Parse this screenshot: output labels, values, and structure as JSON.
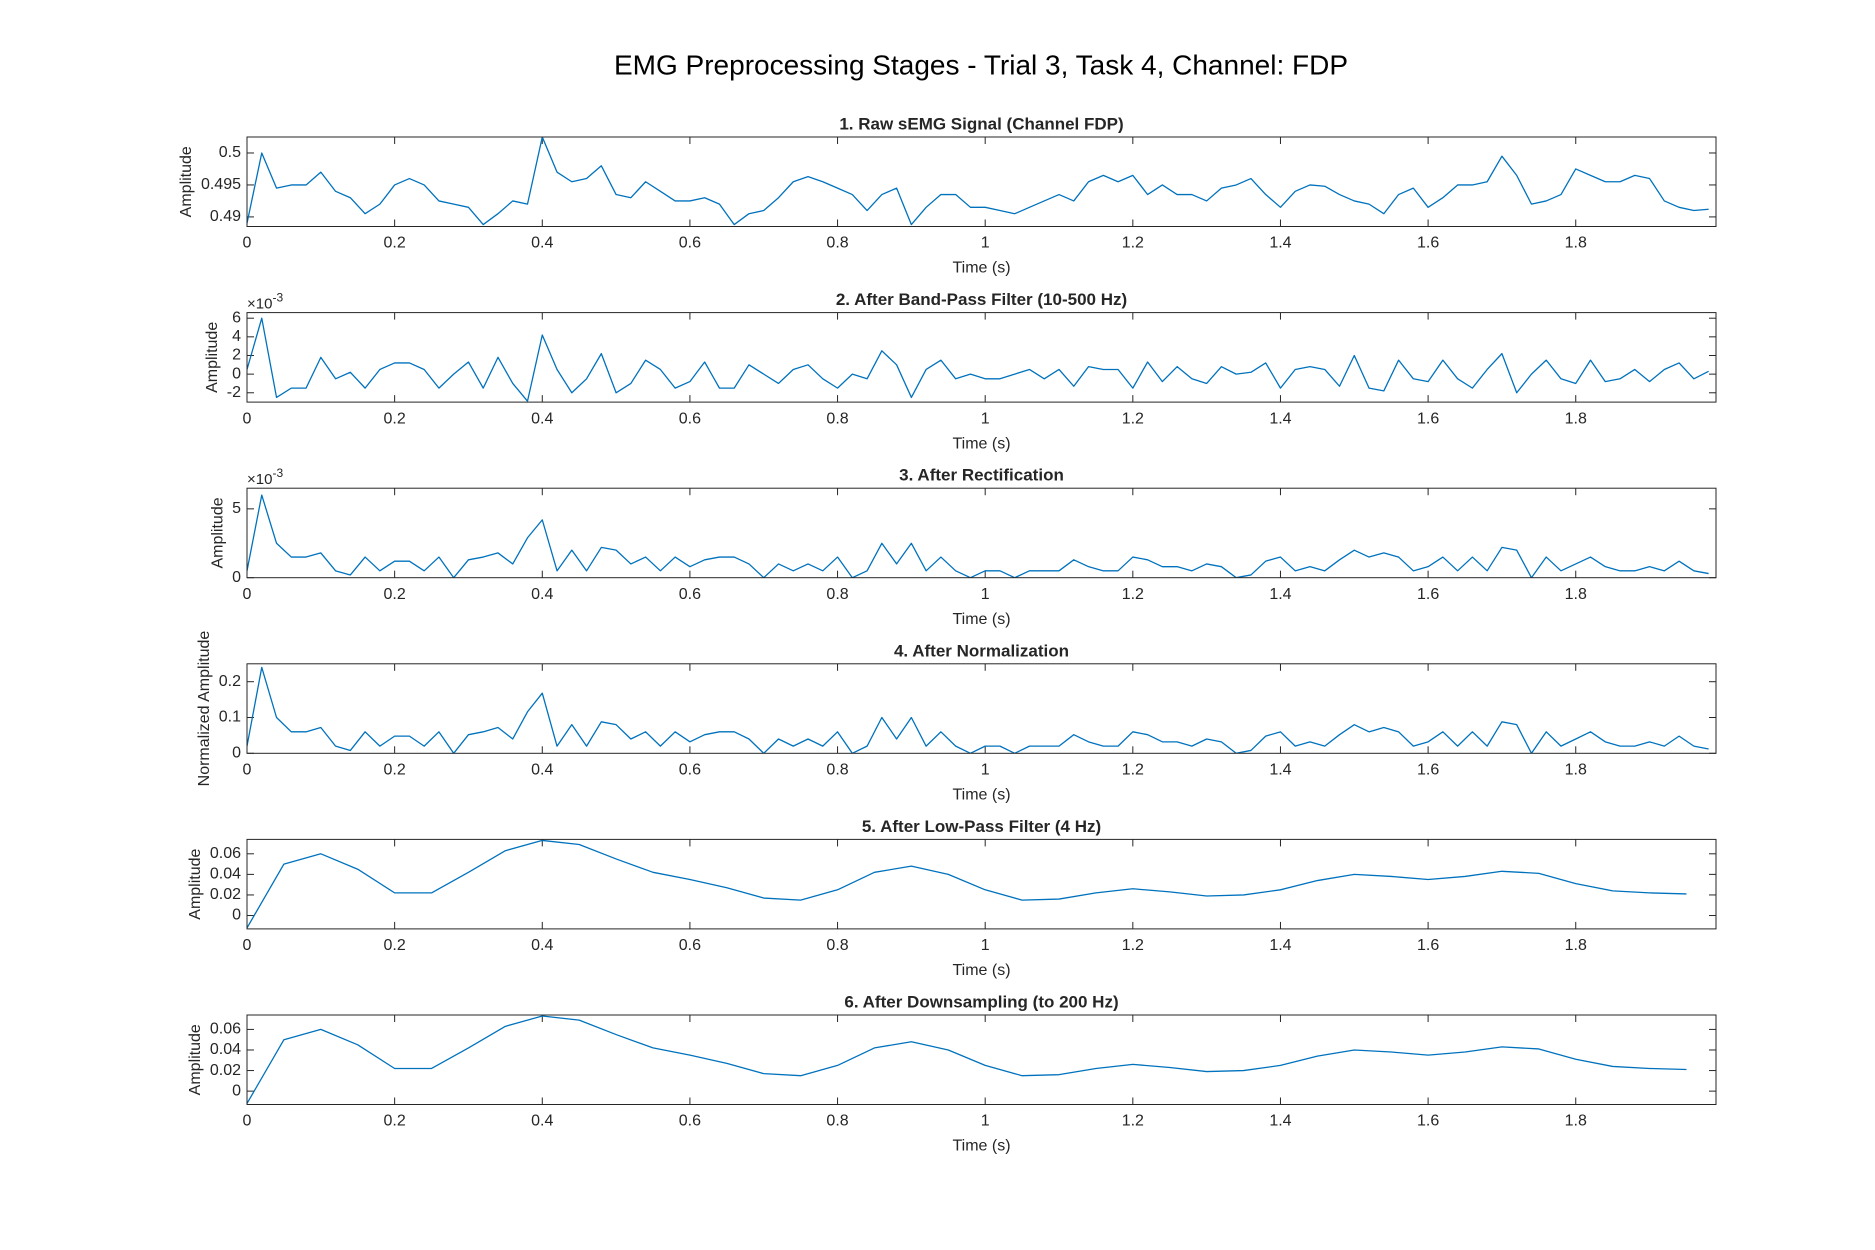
{
  "title": "EMG Preprocessing Stages - Trial 3, Task 4, Channel: FDP",
  "chart_data": [
    {
      "type": "line",
      "title": "1. Raw sEMG Signal (Channel FDP)",
      "xlabel": "Time (s)",
      "ylabel": "Amplitude",
      "xlim": [
        0,
        1.99
      ],
      "xticks": [
        0,
        0.2,
        0.4,
        0.6,
        0.8,
        1,
        1.2,
        1.4,
        1.6,
        1.8
      ],
      "ylim": [
        0.4885,
        0.5025
      ],
      "yticks": [
        0.49,
        0.495,
        0.5
      ],
      "x": [
        0,
        0.02,
        0.04,
        0.06,
        0.08,
        0.1,
        0.12,
        0.14,
        0.16,
        0.18,
        0.2,
        0.22,
        0.24,
        0.26,
        0.28,
        0.3,
        0.32,
        0.34,
        0.36,
        0.38,
        0.4,
        0.42,
        0.44,
        0.46,
        0.48,
        0.5,
        0.52,
        0.54,
        0.56,
        0.58,
        0.6,
        0.62,
        0.64,
        0.66,
        0.68,
        0.7,
        0.72,
        0.74,
        0.76,
        0.78,
        0.8,
        0.82,
        0.84,
        0.86,
        0.88,
        0.9,
        0.92,
        0.94,
        0.96,
        0.98,
        1,
        1.02,
        1.04,
        1.06,
        1.08,
        1.1,
        1.12,
        1.14,
        1.16,
        1.18,
        1.2,
        1.22,
        1.24,
        1.26,
        1.28,
        1.3,
        1.32,
        1.34,
        1.36,
        1.38,
        1.4,
        1.42,
        1.44,
        1.46,
        1.48,
        1.5,
        1.52,
        1.54,
        1.56,
        1.58,
        1.6,
        1.62,
        1.64,
        1.66,
        1.68,
        1.7,
        1.72,
        1.74,
        1.76,
        1.78,
        1.8,
        1.82,
        1.84,
        1.86,
        1.88,
        1.9,
        1.92,
        1.94,
        1.96,
        1.98
      ],
      "series": [
        {
          "color": "#0072bd",
          "values": [
            0.489,
            0.5,
            0.4945,
            0.495,
            0.495,
            0.497,
            0.494,
            0.493,
            0.4905,
            0.492,
            0.495,
            0.496,
            0.495,
            0.4925,
            0.492,
            0.4915,
            0.4888,
            0.4905,
            0.4925,
            0.492,
            0.5025,
            0.497,
            0.4955,
            0.496,
            0.498,
            0.4935,
            0.493,
            0.4955,
            0.494,
            0.4925,
            0.4925,
            0.493,
            0.492,
            0.4888,
            0.4905,
            0.491,
            0.493,
            0.4955,
            0.4963,
            0.4955,
            0.4945,
            0.4935,
            0.491,
            0.4935,
            0.4945,
            0.4888,
            0.4915,
            0.4935,
            0.4935,
            0.4915,
            0.4915,
            0.491,
            0.4905,
            0.4915,
            0.4925,
            0.4935,
            0.4925,
            0.4955,
            0.4965,
            0.4955,
            0.4965,
            0.4935,
            0.495,
            0.4935,
            0.4935,
            0.4925,
            0.4945,
            0.495,
            0.496,
            0.4935,
            0.4915,
            0.494,
            0.495,
            0.4948,
            0.4935,
            0.4925,
            0.492,
            0.4905,
            0.4935,
            0.4945,
            0.4915,
            0.493,
            0.495,
            0.495,
            0.4955,
            0.4995,
            0.4965,
            0.492,
            0.4925,
            0.4935,
            0.4975,
            0.4965,
            0.4955,
            0.4955,
            0.4965,
            0.496,
            0.4925,
            0.4915,
            0.491,
            0.4912
          ]
        }
      ]
    },
    {
      "type": "line",
      "title": "2. After Band-Pass Filter (10-500 Hz)",
      "xlabel": "Time (s)",
      "ylabel": "Amplitude",
      "y_exponent": {
        "base": "×10",
        "power": "-3"
      },
      "xlim": [
        0,
        1.99
      ],
      "xticks": [
        0,
        0.2,
        0.4,
        0.6,
        0.8,
        1,
        1.2,
        1.4,
        1.6,
        1.8
      ],
      "ylim": [
        -3,
        6.6
      ],
      "yticks": [
        -2,
        0,
        2,
        4,
        6
      ],
      "x": [
        0,
        0.02,
        0.04,
        0.06,
        0.08,
        0.1,
        0.12,
        0.14,
        0.16,
        0.18,
        0.2,
        0.22,
        0.24,
        0.26,
        0.28,
        0.3,
        0.32,
        0.34,
        0.36,
        0.38,
        0.4,
        0.42,
        0.44,
        0.46,
        0.48,
        0.5,
        0.52,
        0.54,
        0.56,
        0.58,
        0.6,
        0.62,
        0.64,
        0.66,
        0.68,
        0.7,
        0.72,
        0.74,
        0.76,
        0.78,
        0.8,
        0.82,
        0.84,
        0.86,
        0.88,
        0.9,
        0.92,
        0.94,
        0.96,
        0.98,
        1,
        1.02,
        1.04,
        1.06,
        1.08,
        1.1,
        1.12,
        1.14,
        1.16,
        1.18,
        1.2,
        1.22,
        1.24,
        1.26,
        1.28,
        1.3,
        1.32,
        1.34,
        1.36,
        1.38,
        1.4,
        1.42,
        1.44,
        1.46,
        1.48,
        1.5,
        1.52,
        1.54,
        1.56,
        1.58,
        1.6,
        1.62,
        1.64,
        1.66,
        1.68,
        1.7,
        1.72,
        1.74,
        1.76,
        1.78,
        1.8,
        1.82,
        1.84,
        1.86,
        1.88,
        1.9,
        1.92,
        1.94,
        1.96,
        1.98
      ],
      "series": [
        {
          "color": "#0072bd",
          "values": [
            0.5,
            6,
            -2.5,
            -1.5,
            -1.5,
            1.8,
            -0.5,
            0.2,
            -1.5,
            0.5,
            1.2,
            1.2,
            0.5,
            -1.5,
            0,
            1.3,
            -1.5,
            1.8,
            -1,
            -2.9,
            4.2,
            0.5,
            -2,
            -0.5,
            2.2,
            -2,
            -1,
            1.5,
            0.5,
            -1.5,
            -0.8,
            1.3,
            -1.5,
            -1.5,
            1,
            0,
            -1,
            0.5,
            1,
            -0.5,
            -1.5,
            0,
            -0.5,
            2.5,
            1,
            -2.5,
            0.5,
            1.5,
            -0.5,
            0,
            -0.5,
            -0.5,
            0,
            0.5,
            -0.5,
            0.5,
            -1.3,
            0.8,
            0.5,
            0.5,
            -1.5,
            1.3,
            -0.8,
            0.8,
            -0.5,
            -1,
            0.8,
            0,
            0.2,
            1.2,
            -1.5,
            0.5,
            0.8,
            0.5,
            -1.3,
            2,
            -1.5,
            -1.8,
            1.5,
            -0.5,
            -0.8,
            1.5,
            -0.5,
            -1.5,
            0.5,
            2.2,
            -2,
            0,
            1.5,
            -0.5,
            -1,
            1.5,
            -0.8,
            -0.5,
            0.5,
            -0.8,
            0.5,
            1.2,
            -0.5,
            0.3
          ]
        }
      ]
    },
    {
      "type": "line",
      "title": "3. After Rectification",
      "xlabel": "Time (s)",
      "ylabel": "Amplitude",
      "y_exponent": {
        "base": "×10",
        "power": "-3"
      },
      "xlim": [
        0,
        1.99
      ],
      "xticks": [
        0,
        0.2,
        0.4,
        0.6,
        0.8,
        1,
        1.2,
        1.4,
        1.6,
        1.8
      ],
      "ylim": [
        0,
        6.5
      ],
      "yticks": [
        0,
        5
      ],
      "x": [
        0,
        0.02,
        0.04,
        0.06,
        0.08,
        0.1,
        0.12,
        0.14,
        0.16,
        0.18,
        0.2,
        0.22,
        0.24,
        0.26,
        0.28,
        0.3,
        0.32,
        0.34,
        0.36,
        0.38,
        0.4,
        0.42,
        0.44,
        0.46,
        0.48,
        0.5,
        0.52,
        0.54,
        0.56,
        0.58,
        0.6,
        0.62,
        0.64,
        0.66,
        0.68,
        0.7,
        0.72,
        0.74,
        0.76,
        0.78,
        0.8,
        0.82,
        0.84,
        0.86,
        0.88,
        0.9,
        0.92,
        0.94,
        0.96,
        0.98,
        1,
        1.02,
        1.04,
        1.06,
        1.08,
        1.1,
        1.12,
        1.14,
        1.16,
        1.18,
        1.2,
        1.22,
        1.24,
        1.26,
        1.28,
        1.3,
        1.32,
        1.34,
        1.36,
        1.38,
        1.4,
        1.42,
        1.44,
        1.46,
        1.48,
        1.5,
        1.52,
        1.54,
        1.56,
        1.58,
        1.6,
        1.62,
        1.64,
        1.66,
        1.68,
        1.7,
        1.72,
        1.74,
        1.76,
        1.78,
        1.8,
        1.82,
        1.84,
        1.86,
        1.88,
        1.9,
        1.92,
        1.94,
        1.96,
        1.98
      ],
      "series": [
        {
          "color": "#0072bd",
          "values": [
            0.5,
            6,
            2.5,
            1.5,
            1.5,
            1.8,
            0.5,
            0.2,
            1.5,
            0.5,
            1.2,
            1.2,
            0.5,
            1.5,
            0,
            1.3,
            1.5,
            1.8,
            1,
            2.9,
            4.2,
            0.5,
            2,
            0.5,
            2.2,
            2,
            1,
            1.5,
            0.5,
            1.5,
            0.8,
            1.3,
            1.5,
            1.5,
            1,
            0,
            1,
            0.5,
            1,
            0.5,
            1.5,
            0,
            0.5,
            2.5,
            1,
            2.5,
            0.5,
            1.5,
            0.5,
            0,
            0.5,
            0.5,
            0,
            0.5,
            0.5,
            0.5,
            1.3,
            0.8,
            0.5,
            0.5,
            1.5,
            1.3,
            0.8,
            0.8,
            0.5,
            1,
            0.8,
            0,
            0.2,
            1.2,
            1.5,
            0.5,
            0.8,
            0.5,
            1.3,
            2,
            1.5,
            1.8,
            1.5,
            0.5,
            0.8,
            1.5,
            0.5,
            1.5,
            0.5,
            2.2,
            2,
            0,
            1.5,
            0.5,
            1,
            1.5,
            0.8,
            0.5,
            0.5,
            0.8,
            0.5,
            1.2,
            0.5,
            0.3
          ]
        }
      ]
    },
    {
      "type": "line",
      "title": "4. After Normalization",
      "xlabel": "Time (s)",
      "ylabel": "Normalized Amplitude",
      "xlim": [
        0,
        1.99
      ],
      "xticks": [
        0,
        0.2,
        0.4,
        0.6,
        0.8,
        1,
        1.2,
        1.4,
        1.6,
        1.8
      ],
      "ylim": [
        0,
        0.25
      ],
      "yticks": [
        0,
        0.1,
        0.2
      ],
      "x": [
        0,
        0.02,
        0.04,
        0.06,
        0.08,
        0.1,
        0.12,
        0.14,
        0.16,
        0.18,
        0.2,
        0.22,
        0.24,
        0.26,
        0.28,
        0.3,
        0.32,
        0.34,
        0.36,
        0.38,
        0.4,
        0.42,
        0.44,
        0.46,
        0.48,
        0.5,
        0.52,
        0.54,
        0.56,
        0.58,
        0.6,
        0.62,
        0.64,
        0.66,
        0.68,
        0.7,
        0.72,
        0.74,
        0.76,
        0.78,
        0.8,
        0.82,
        0.84,
        0.86,
        0.88,
        0.9,
        0.92,
        0.94,
        0.96,
        0.98,
        1,
        1.02,
        1.04,
        1.06,
        1.08,
        1.1,
        1.12,
        1.14,
        1.16,
        1.18,
        1.2,
        1.22,
        1.24,
        1.26,
        1.28,
        1.3,
        1.32,
        1.34,
        1.36,
        1.38,
        1.4,
        1.42,
        1.44,
        1.46,
        1.48,
        1.5,
        1.52,
        1.54,
        1.56,
        1.58,
        1.6,
        1.62,
        1.64,
        1.66,
        1.68,
        1.7,
        1.72,
        1.74,
        1.76,
        1.78,
        1.8,
        1.82,
        1.84,
        1.86,
        1.88,
        1.9,
        1.92,
        1.94,
        1.96,
        1.98
      ],
      "series": [
        {
          "color": "#0072bd",
          "values": [
            0.02,
            0.24,
            0.1,
            0.06,
            0.06,
            0.072,
            0.02,
            0.008,
            0.06,
            0.02,
            0.048,
            0.048,
            0.02,
            0.06,
            0,
            0.052,
            0.06,
            0.072,
            0.04,
            0.116,
            0.168,
            0.02,
            0.08,
            0.02,
            0.088,
            0.08,
            0.04,
            0.06,
            0.02,
            0.06,
            0.032,
            0.052,
            0.06,
            0.06,
            0.04,
            0,
            0.04,
            0.02,
            0.04,
            0.02,
            0.06,
            0,
            0.02,
            0.1,
            0.04,
            0.1,
            0.02,
            0.06,
            0.02,
            0,
            0.02,
            0.02,
            0,
            0.02,
            0.02,
            0.02,
            0.052,
            0.032,
            0.02,
            0.02,
            0.06,
            0.052,
            0.032,
            0.032,
            0.02,
            0.04,
            0.032,
            0,
            0.008,
            0.048,
            0.06,
            0.02,
            0.032,
            0.02,
            0.052,
            0.08,
            0.06,
            0.072,
            0.06,
            0.02,
            0.032,
            0.06,
            0.02,
            0.06,
            0.02,
            0.088,
            0.08,
            0,
            0.06,
            0.02,
            0.04,
            0.06,
            0.032,
            0.02,
            0.02,
            0.032,
            0.02,
            0.048,
            0.02,
            0.012
          ]
        }
      ]
    },
    {
      "type": "line",
      "title": "5. After Low-Pass Filter (4 Hz)",
      "xlabel": "Time (s)",
      "ylabel": "Amplitude",
      "xlim": [
        0,
        1.99
      ],
      "xticks": [
        0,
        0.2,
        0.4,
        0.6,
        0.8,
        1,
        1.2,
        1.4,
        1.6,
        1.8
      ],
      "ylim": [
        -0.013,
        0.074
      ],
      "yticks": [
        0,
        0.02,
        0.04,
        0.06
      ],
      "x": [
        0,
        0.05,
        0.1,
        0.15,
        0.2,
        0.25,
        0.3,
        0.35,
        0.4,
        0.45,
        0.5,
        0.55,
        0.6,
        0.65,
        0.7,
        0.75,
        0.8,
        0.85,
        0.9,
        0.95,
        1,
        1.05,
        1.1,
        1.15,
        1.2,
        1.25,
        1.3,
        1.35,
        1.4,
        1.45,
        1.5,
        1.55,
        1.6,
        1.65,
        1.7,
        1.75,
        1.8,
        1.85,
        1.9,
        1.95
      ],
      "series": [
        {
          "color": "#0072bd",
          "values": [
            -0.012,
            0.05,
            0.06,
            0.045,
            0.022,
            0.022,
            0.042,
            0.063,
            0.073,
            0.069,
            0.055,
            0.042,
            0.035,
            0.027,
            0.017,
            0.015,
            0.025,
            0.042,
            0.048,
            0.04,
            0.025,
            0.015,
            0.016,
            0.022,
            0.026,
            0.023,
            0.019,
            0.02,
            0.025,
            0.034,
            0.04,
            0.038,
            0.035,
            0.038,
            0.043,
            0.041,
            0.031,
            0.024,
            0.022,
            0.021
          ]
        }
      ]
    },
    {
      "type": "line",
      "title": "6. After Downsampling (to 200 Hz)",
      "xlabel": "Time (s)",
      "ylabel": "Amplitude",
      "xlim": [
        0,
        1.99
      ],
      "xticks": [
        0,
        0.2,
        0.4,
        0.6,
        0.8,
        1,
        1.2,
        1.4,
        1.6,
        1.8
      ],
      "ylim": [
        -0.013,
        0.074
      ],
      "yticks": [
        0,
        0.02,
        0.04,
        0.06
      ],
      "x": [
        0,
        0.05,
        0.1,
        0.15,
        0.2,
        0.25,
        0.3,
        0.35,
        0.4,
        0.45,
        0.5,
        0.55,
        0.6,
        0.65,
        0.7,
        0.75,
        0.8,
        0.85,
        0.9,
        0.95,
        1,
        1.05,
        1.1,
        1.15,
        1.2,
        1.25,
        1.3,
        1.35,
        1.4,
        1.45,
        1.5,
        1.55,
        1.6,
        1.65,
        1.7,
        1.75,
        1.8,
        1.85,
        1.9,
        1.95
      ],
      "series": [
        {
          "color": "#0072bd",
          "values": [
            -0.012,
            0.05,
            0.06,
            0.045,
            0.022,
            0.022,
            0.042,
            0.063,
            0.073,
            0.069,
            0.055,
            0.042,
            0.035,
            0.027,
            0.017,
            0.015,
            0.025,
            0.042,
            0.048,
            0.04,
            0.025,
            0.015,
            0.016,
            0.022,
            0.026,
            0.023,
            0.019,
            0.02,
            0.025,
            0.034,
            0.04,
            0.038,
            0.035,
            0.038,
            0.043,
            0.041,
            0.031,
            0.024,
            0.022,
            0.021
          ]
        }
      ]
    }
  ]
}
